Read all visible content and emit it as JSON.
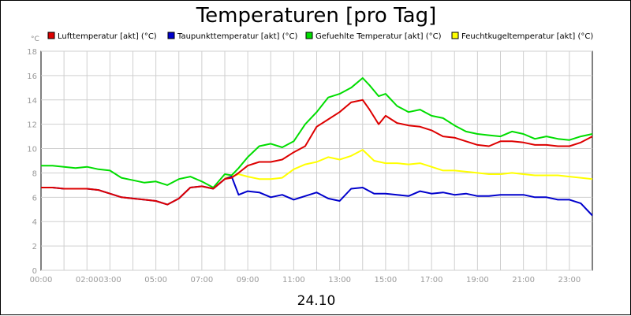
{
  "chart_data": {
    "type": "line",
    "title": "Temperaturen [pro Tag]",
    "ylabel": "°C",
    "xlabel": "24.10",
    "ylim": [
      0,
      18
    ],
    "yticks": [
      0,
      2,
      4,
      6,
      8,
      10,
      12,
      14,
      16,
      18
    ],
    "xlim": [
      0,
      24
    ],
    "xticks": [
      {
        "t": 0,
        "label": "00:00"
      },
      {
        "t": 2,
        "label": "02:00"
      },
      {
        "t": 3,
        "label": "03:00"
      },
      {
        "t": 5,
        "label": "05:00"
      },
      {
        "t": 7,
        "label": "07:00"
      },
      {
        "t": 9,
        "label": "09:00"
      },
      {
        "t": 11,
        "label": "11:00"
      },
      {
        "t": 13,
        "label": "13:00"
      },
      {
        "t": 15,
        "label": "15:00"
      },
      {
        "t": 17,
        "label": "17:00"
      },
      {
        "t": 19,
        "label": "19:00"
      },
      {
        "t": 21,
        "label": "21:00"
      },
      {
        "t": 23,
        "label": "23:00"
      }
    ],
    "grid": true,
    "legend_position": "top",
    "series": [
      {
        "name": "Lufttemperatur [akt] (°C)",
        "color": "#dd0000",
        "x": [
          0,
          0.5,
          1,
          1.5,
          2,
          2.5,
          3,
          3.5,
          4,
          4.5,
          5,
          5.5,
          6,
          6.5,
          7,
          7.5,
          8,
          8.3,
          8.6,
          9,
          9.5,
          10,
          10.5,
          11,
          11.5,
          12,
          12.5,
          13,
          13.5,
          14,
          14.3,
          14.7,
          15,
          15.5,
          16,
          16.5,
          17,
          17.5,
          18,
          18.5,
          19,
          19.5,
          20,
          20.5,
          21,
          21.5,
          22,
          22.5,
          23,
          23.5,
          24
        ],
        "y": [
          6.8,
          6.8,
          6.7,
          6.7,
          6.7,
          6.6,
          6.3,
          6.0,
          5.9,
          5.8,
          5.7,
          5.4,
          5.9,
          6.8,
          6.9,
          6.7,
          7.5,
          7.6,
          8.0,
          8.6,
          8.9,
          8.9,
          9.1,
          9.7,
          10.2,
          11.8,
          12.4,
          13.0,
          13.8,
          14.0,
          13.2,
          12.0,
          12.7,
          12.1,
          11.9,
          11.8,
          11.5,
          11.0,
          10.9,
          10.6,
          10.3,
          10.2,
          10.6,
          10.6,
          10.5,
          10.3,
          10.3,
          10.2,
          10.2,
          10.5,
          11.0
        ]
      },
      {
        "name": "Taupunkttemperatur [akt] (°C)",
        "color": "#0000cc",
        "x": [
          0,
          0.5,
          1,
          1.5,
          2,
          2.5,
          3,
          3.5,
          4,
          4.5,
          5,
          5.5,
          6,
          6.5,
          7,
          7.5,
          8,
          8.3,
          8.6,
          9,
          9.5,
          10,
          10.5,
          11,
          11.5,
          12,
          12.5,
          13,
          13.5,
          14,
          14.5,
          15,
          15.5,
          16,
          16.5,
          17,
          17.5,
          18,
          18.5,
          19,
          19.5,
          20,
          20.5,
          21,
          21.5,
          22,
          22.5,
          23,
          23.5,
          24
        ],
        "y": [
          6.8,
          6.8,
          6.7,
          6.7,
          6.7,
          6.6,
          6.3,
          6.0,
          5.9,
          5.8,
          5.7,
          5.4,
          5.9,
          6.8,
          6.9,
          6.7,
          7.5,
          7.7,
          6.2,
          6.5,
          6.4,
          6.0,
          6.2,
          5.8,
          6.1,
          6.4,
          5.9,
          5.7,
          6.7,
          6.8,
          6.3,
          6.3,
          6.2,
          6.1,
          6.5,
          6.3,
          6.4,
          6.2,
          6.3,
          6.1,
          6.1,
          6.2,
          6.2,
          6.2,
          6.0,
          6.0,
          5.8,
          5.8,
          5.5,
          4.5
        ]
      },
      {
        "name": "Gefuehlte Temperatur [akt] (°C)",
        "color": "#00dd00",
        "x": [
          0,
          0.5,
          1,
          1.5,
          2,
          2.5,
          3,
          3.5,
          4,
          4.5,
          5,
          5.5,
          6,
          6.5,
          7,
          7.5,
          8,
          8.3,
          8.6,
          9,
          9.5,
          10,
          10.5,
          11,
          11.5,
          12,
          12.5,
          13,
          13.5,
          14,
          14.3,
          14.7,
          15,
          15.5,
          16,
          16.5,
          17,
          17.5,
          18,
          18.5,
          19,
          19.5,
          20,
          20.5,
          21,
          21.5,
          22,
          22.5,
          23,
          23.5,
          24
        ],
        "y": [
          8.6,
          8.6,
          8.5,
          8.4,
          8.5,
          8.3,
          8.2,
          7.6,
          7.4,
          7.2,
          7.3,
          7.0,
          7.5,
          7.7,
          7.3,
          6.8,
          7.9,
          7.8,
          8.4,
          9.3,
          10.2,
          10.4,
          10.1,
          10.6,
          12.0,
          13.0,
          14.2,
          14.5,
          15.0,
          15.8,
          15.2,
          14.3,
          14.5,
          13.5,
          13.0,
          13.2,
          12.7,
          12.5,
          11.9,
          11.4,
          11.2,
          11.1,
          11.0,
          11.4,
          11.2,
          10.8,
          11.0,
          10.8,
          10.7,
          11.0,
          11.2
        ]
      },
      {
        "name": "Feuchtkugeltemperatur [akt] (°C)",
        "color": "#ffff00",
        "x": [
          8,
          8.3,
          8.6,
          9,
          9.5,
          10,
          10.5,
          11,
          11.5,
          12,
          12.5,
          13,
          13.5,
          14,
          14.5,
          15,
          15.5,
          16,
          16.5,
          17,
          17.5,
          18,
          18.5,
          19,
          19.5,
          20,
          20.5,
          21,
          21.5,
          22,
          22.5,
          23,
          23.5,
          24
        ],
        "y": [
          7.6,
          7.7,
          7.9,
          7.7,
          7.5,
          7.5,
          7.6,
          8.3,
          8.7,
          8.9,
          9.3,
          9.1,
          9.4,
          9.9,
          9.0,
          8.8,
          8.8,
          8.7,
          8.8,
          8.5,
          8.2,
          8.2,
          8.1,
          8.0,
          7.9,
          7.9,
          8.0,
          7.9,
          7.8,
          7.8,
          7.8,
          7.7,
          7.6,
          7.5
        ]
      }
    ]
  }
}
